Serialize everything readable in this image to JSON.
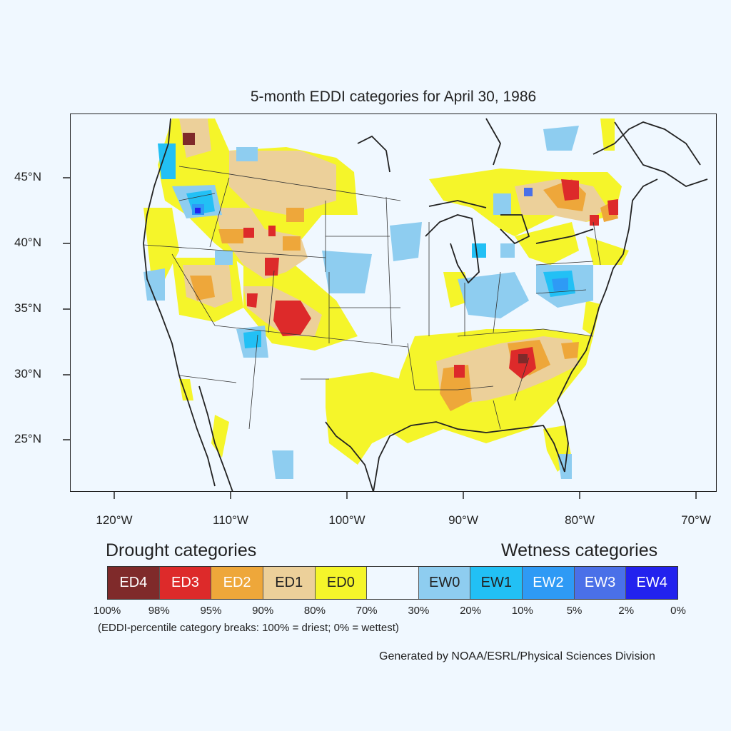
{
  "title": "5-month EDDI categories for April 30, 1986",
  "lat_labels": [
    "45°N",
    "40°N",
    "35°N",
    "30°N",
    "25°N"
  ],
  "lon_labels": [
    "120°W",
    "110°W",
    "100°W",
    "90°W",
    "80°W",
    "70°W"
  ],
  "legend": {
    "drought_heading": "Drought categories",
    "wetness_heading": "Wetness categories",
    "categories": [
      {
        "label": "ED4",
        "color": "#7f2a2a",
        "text_color": "#ffffff"
      },
      {
        "label": "ED3",
        "color": "#dd2a2a",
        "text_color": "#ffffff"
      },
      {
        "label": "ED2",
        "color": "#eea73a",
        "text_color": "#ffffff"
      },
      {
        "label": "ED1",
        "color": "#ecd09a",
        "text_color": "#222222"
      },
      {
        "label": "ED0",
        "color": "#f5f52a",
        "text_color": "#222222"
      },
      {
        "label": "",
        "color": "#f0f8ff",
        "text_color": "#222222"
      },
      {
        "label": "EW0",
        "color": "#8ecdf0",
        "text_color": "#222222"
      },
      {
        "label": "EW1",
        "color": "#22c0f5",
        "text_color": "#222222"
      },
      {
        "label": "EW2",
        "color": "#2e9af5",
        "text_color": "#ffffff"
      },
      {
        "label": "EW3",
        "color": "#4a70e8",
        "text_color": "#ffffff"
      },
      {
        "label": "EW4",
        "color": "#2222ee",
        "text_color": "#ffffff"
      }
    ],
    "percentiles": [
      "100%",
      "98%",
      "95%",
      "90%",
      "80%",
      "70%",
      "30%",
      "20%",
      "10%",
      "5%",
      "2%",
      "0%"
    ],
    "note": "(EDDI-percentile category breaks: 100% = driest; 0% = wettest)"
  },
  "credit": "Generated by NOAA/ESRL/Physical Sciences Division"
}
